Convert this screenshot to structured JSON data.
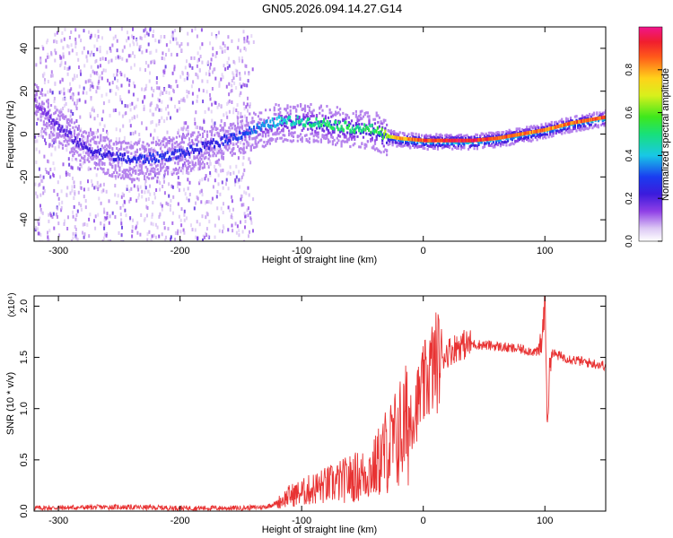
{
  "title": "GN05.2026.094.14.27.G14",
  "chart_data": [
    {
      "type": "heatmap",
      "xlabel": "Height of straight line (km)",
      "ylabel": "Frequency (Hz)",
      "xlim": [
        -320,
        150
      ],
      "ylim": [
        -50,
        50
      ],
      "xticks": [
        -300,
        -200,
        -100,
        0,
        100
      ],
      "yticks": [
        -40,
        -20,
        0,
        20,
        40
      ],
      "colorbar": {
        "label": "Normalized spectral amplitude",
        "range": [
          0,
          1
        ],
        "ticks": [
          0.0,
          0.2,
          0.4,
          0.6,
          0.8
        ],
        "tick_labels": [
          "0.0",
          "0.2",
          "0.4",
          "0.6",
          "0.8"
        ]
      },
      "ridge": {
        "height_km": [
          -320,
          -300,
          -280,
          -260,
          -240,
          -220,
          -200,
          -180,
          -160,
          -140,
          -120,
          -100,
          -80,
          -60,
          -40,
          -30,
          -20,
          0,
          20,
          40,
          60,
          80,
          100,
          120,
          150
        ],
        "frequency_hz": [
          15,
          3,
          -6,
          -10,
          -12,
          -11,
          -9,
          -6,
          -2,
          2,
          6,
          6,
          5,
          3,
          2,
          -1,
          -2,
          -3,
          -3,
          -3,
          -2,
          0,
          2,
          5,
          8
        ],
        "amplitude": [
          0.15,
          0.2,
          0.22,
          0.25,
          0.28,
          0.3,
          0.28,
          0.25,
          0.3,
          0.35,
          0.45,
          0.5,
          0.55,
          0.55,
          0.55,
          0.7,
          0.85,
          0.95,
          1.0,
          1.0,
          0.95,
          0.9,
          0.9,
          0.9,
          0.95
        ]
      }
    },
    {
      "type": "line",
      "xlabel": "Height of straight line (km)",
      "ylabel": "SNR (10 * v/v)",
      "scale_label": "(x10⁴)",
      "xlim": [
        -320,
        150
      ],
      "ylim": [
        0,
        21000
      ],
      "xticks": [
        -300,
        -200,
        -100,
        0,
        100
      ],
      "yticks": [
        0,
        5000,
        10000,
        15000,
        20000
      ],
      "ytick_labels": [
        "0.0",
        "0.5",
        "1.0",
        "1.5",
        "2.0"
      ],
      "color": "#e83232",
      "x": [
        -320,
        -250,
        -200,
        -150,
        -130,
        -120,
        -110,
        -100,
        -90,
        -80,
        -70,
        -60,
        -50,
        -40,
        -30,
        -25,
        -20,
        -15,
        -10,
        -5,
        0,
        5,
        10,
        20,
        30,
        40,
        50,
        60,
        70,
        80,
        90,
        95,
        98,
        100,
        102,
        105,
        110,
        120,
        130,
        140,
        150
      ],
      "y": [
        300,
        400,
        300,
        300,
        400,
        800,
        1500,
        1800,
        2200,
        2500,
        2800,
        3200,
        3500,
        4200,
        6000,
        6500,
        7500,
        8200,
        9000,
        10500,
        12000,
        13500,
        14500,
        15500,
        16200,
        16300,
        16200,
        16100,
        15900,
        15800,
        15600,
        15500,
        17000,
        21000,
        9000,
        15500,
        15200,
        14900,
        14600,
        14400,
        14200
      ]
    }
  ]
}
